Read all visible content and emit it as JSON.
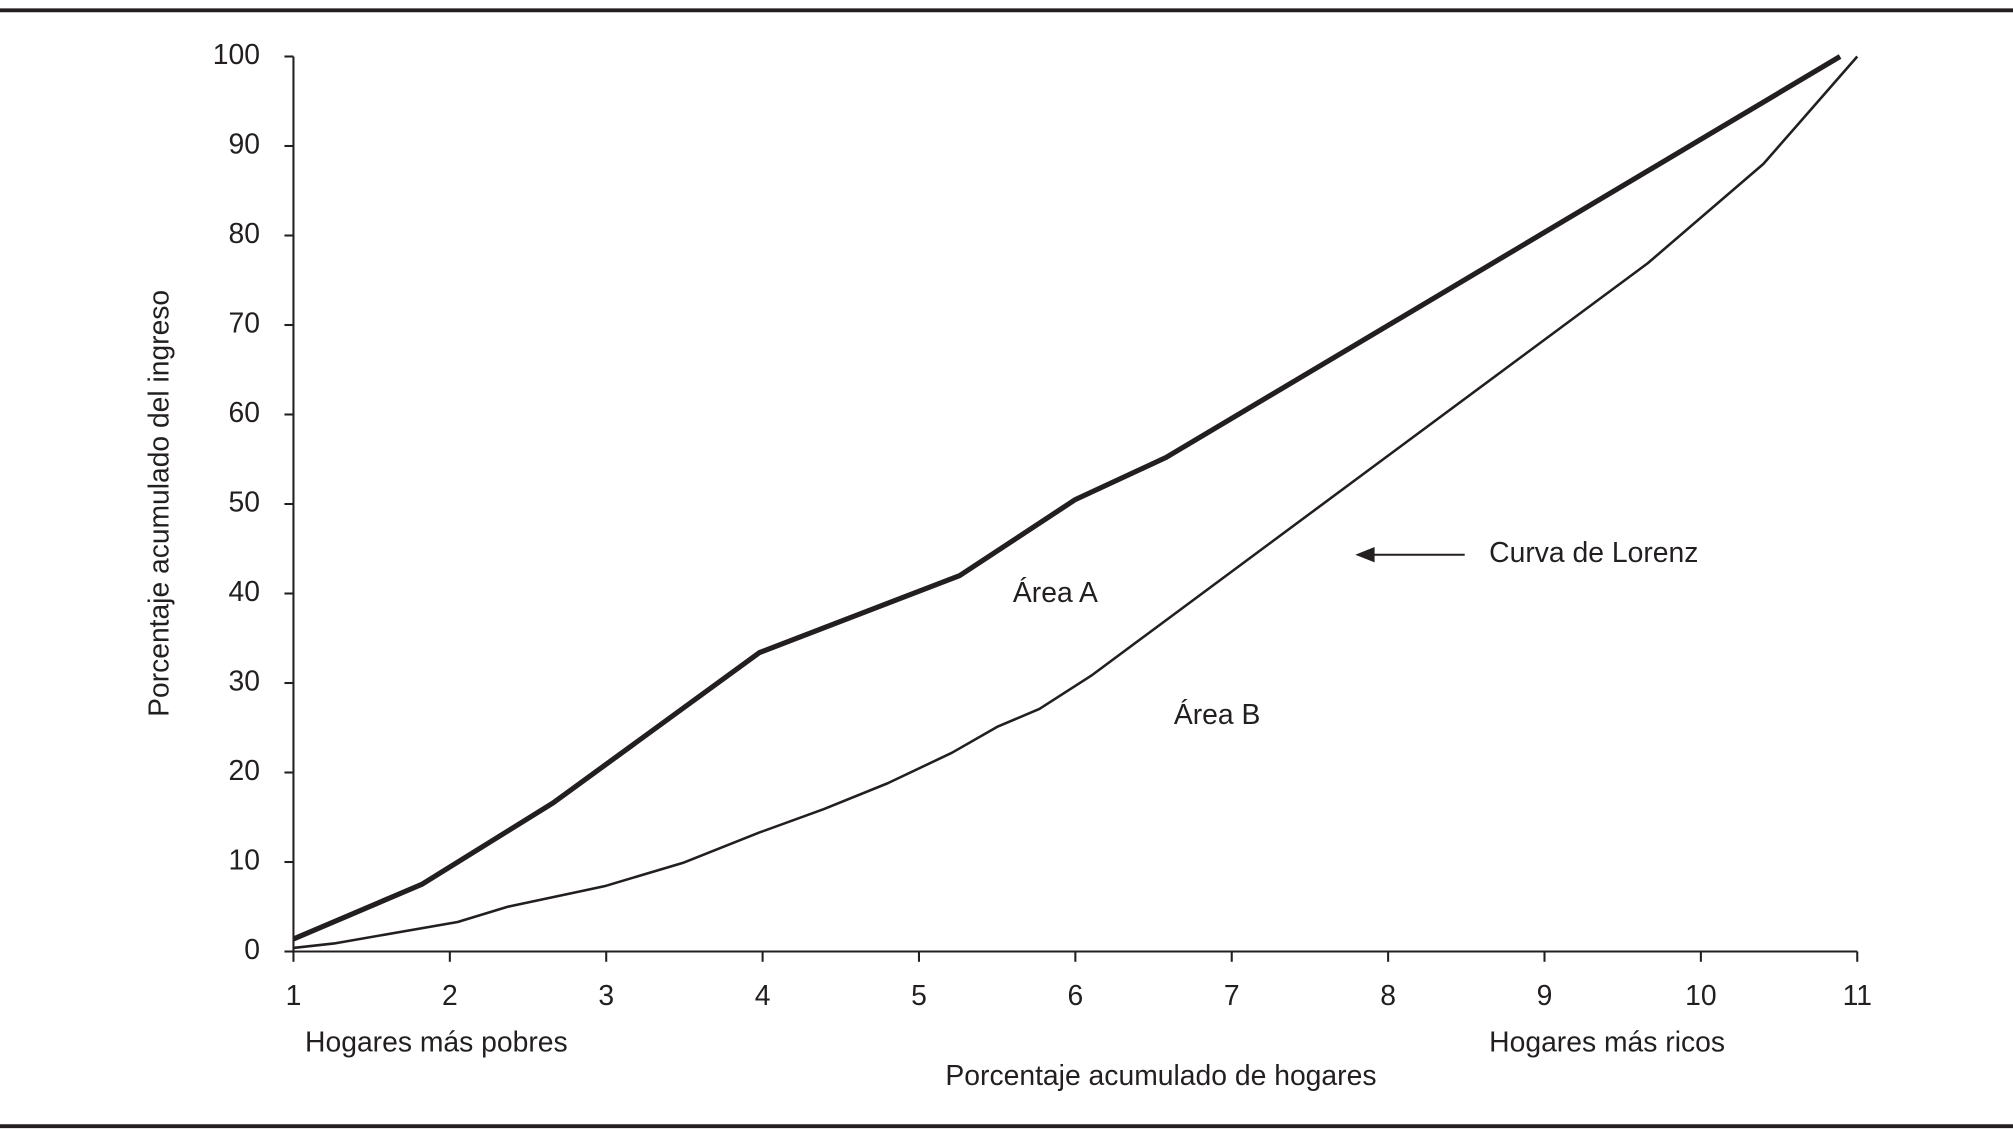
{
  "chart_data": {
    "type": "line",
    "xlabel": "Porcentaje acumulado de hogares",
    "ylabel": "Porcentaje acumulado del ingreso",
    "xlim": [
      1,
      11
    ],
    "ylim": [
      0,
      100
    ],
    "xticks": [
      1,
      2,
      3,
      4,
      5,
      6,
      7,
      8,
      9,
      10,
      11
    ],
    "yticks": [
      0,
      10,
      20,
      30,
      40,
      50,
      60,
      70,
      80,
      90,
      100
    ],
    "grid": false,
    "end_labels": [
      "Hogares más pobres",
      "Hogares más ricos"
    ],
    "annotations": [
      "Área A",
      "Área B",
      "Curva de Lorenz"
    ],
    "series": [
      {
        "color": "#231f20",
        "line_width": 4,
        "x": [
          1,
          1.82,
          2.66,
          3.98,
          5.26,
          6.0,
          6.58,
          10.89
        ],
        "values": [
          1.4,
          7.5,
          16.6,
          33.4,
          42,
          50.5,
          55.2,
          100
        ]
      },
      {
        "color": "#231f20",
        "line_width": 2,
        "x": [
          1,
          1.26,
          2.05,
          2.37,
          2.99,
          3.49,
          3.98,
          4.39,
          4.8,
          5.21,
          5.5,
          5.77,
          6.1,
          9.66,
          10.4,
          11
        ],
        "values": [
          0.4,
          0.9,
          3.3,
          5,
          7.3,
          9.9,
          13.3,
          15.9,
          18.8,
          22.2,
          25.1,
          27.1,
          30.8,
          76.9,
          88,
          100
        ]
      }
    ]
  }
}
